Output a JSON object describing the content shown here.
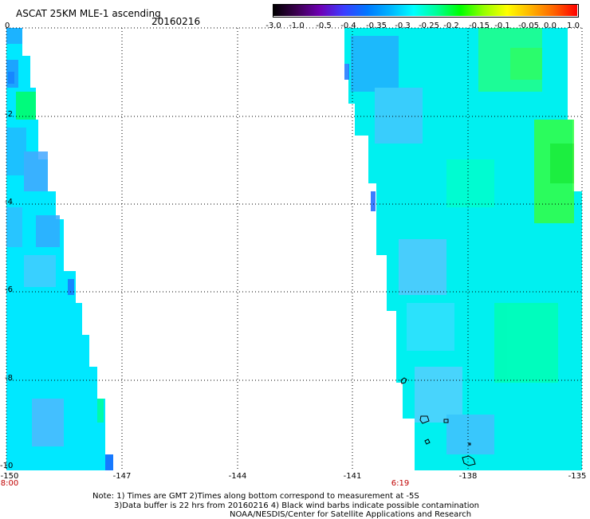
{
  "header": {
    "title": "ASCAT 25KM MLE-1 ascending",
    "date": "20160216"
  },
  "colorbar": {
    "labels": [
      "-3.0",
      "-1.0",
      "-0.5",
      "-0.4",
      "-0.35",
      "-0.3",
      "-0.25",
      "-0.2",
      "-0.15",
      "-0.1",
      "-0.05",
      "0.0",
      "1.0"
    ],
    "colors": [
      "#000000",
      "#3c0050",
      "#6e00b4",
      "#3c3cff",
      "#0078ff",
      "#00b4ff",
      "#00ffff",
      "#00ff96",
      "#00ff00",
      "#96ff00",
      "#ffff00",
      "#ffb400",
      "#ff6400",
      "#ff0000"
    ]
  },
  "map": {
    "lat_labels": [
      "0",
      "-2",
      "-4",
      "-6",
      "-8",
      "-10"
    ],
    "lon_labels": [
      "-150",
      "-147",
      "-144",
      "-141",
      "-138",
      "-135"
    ],
    "time_labels": [
      "8:00",
      "6:19"
    ],
    "gridline_color": "#000000",
    "coast_color": "#000000"
  },
  "notes": {
    "line1": "Note: 1) Times are GMT 2)Times along bottom correspond to measurement at -5S",
    "line2": "3)Data buffer is 22 hrs from 20160216 4) Black wind barbs indicate possible contamination",
    "line3": "NOAA/NESDIS/Center for Satellite Applications and Research"
  }
}
